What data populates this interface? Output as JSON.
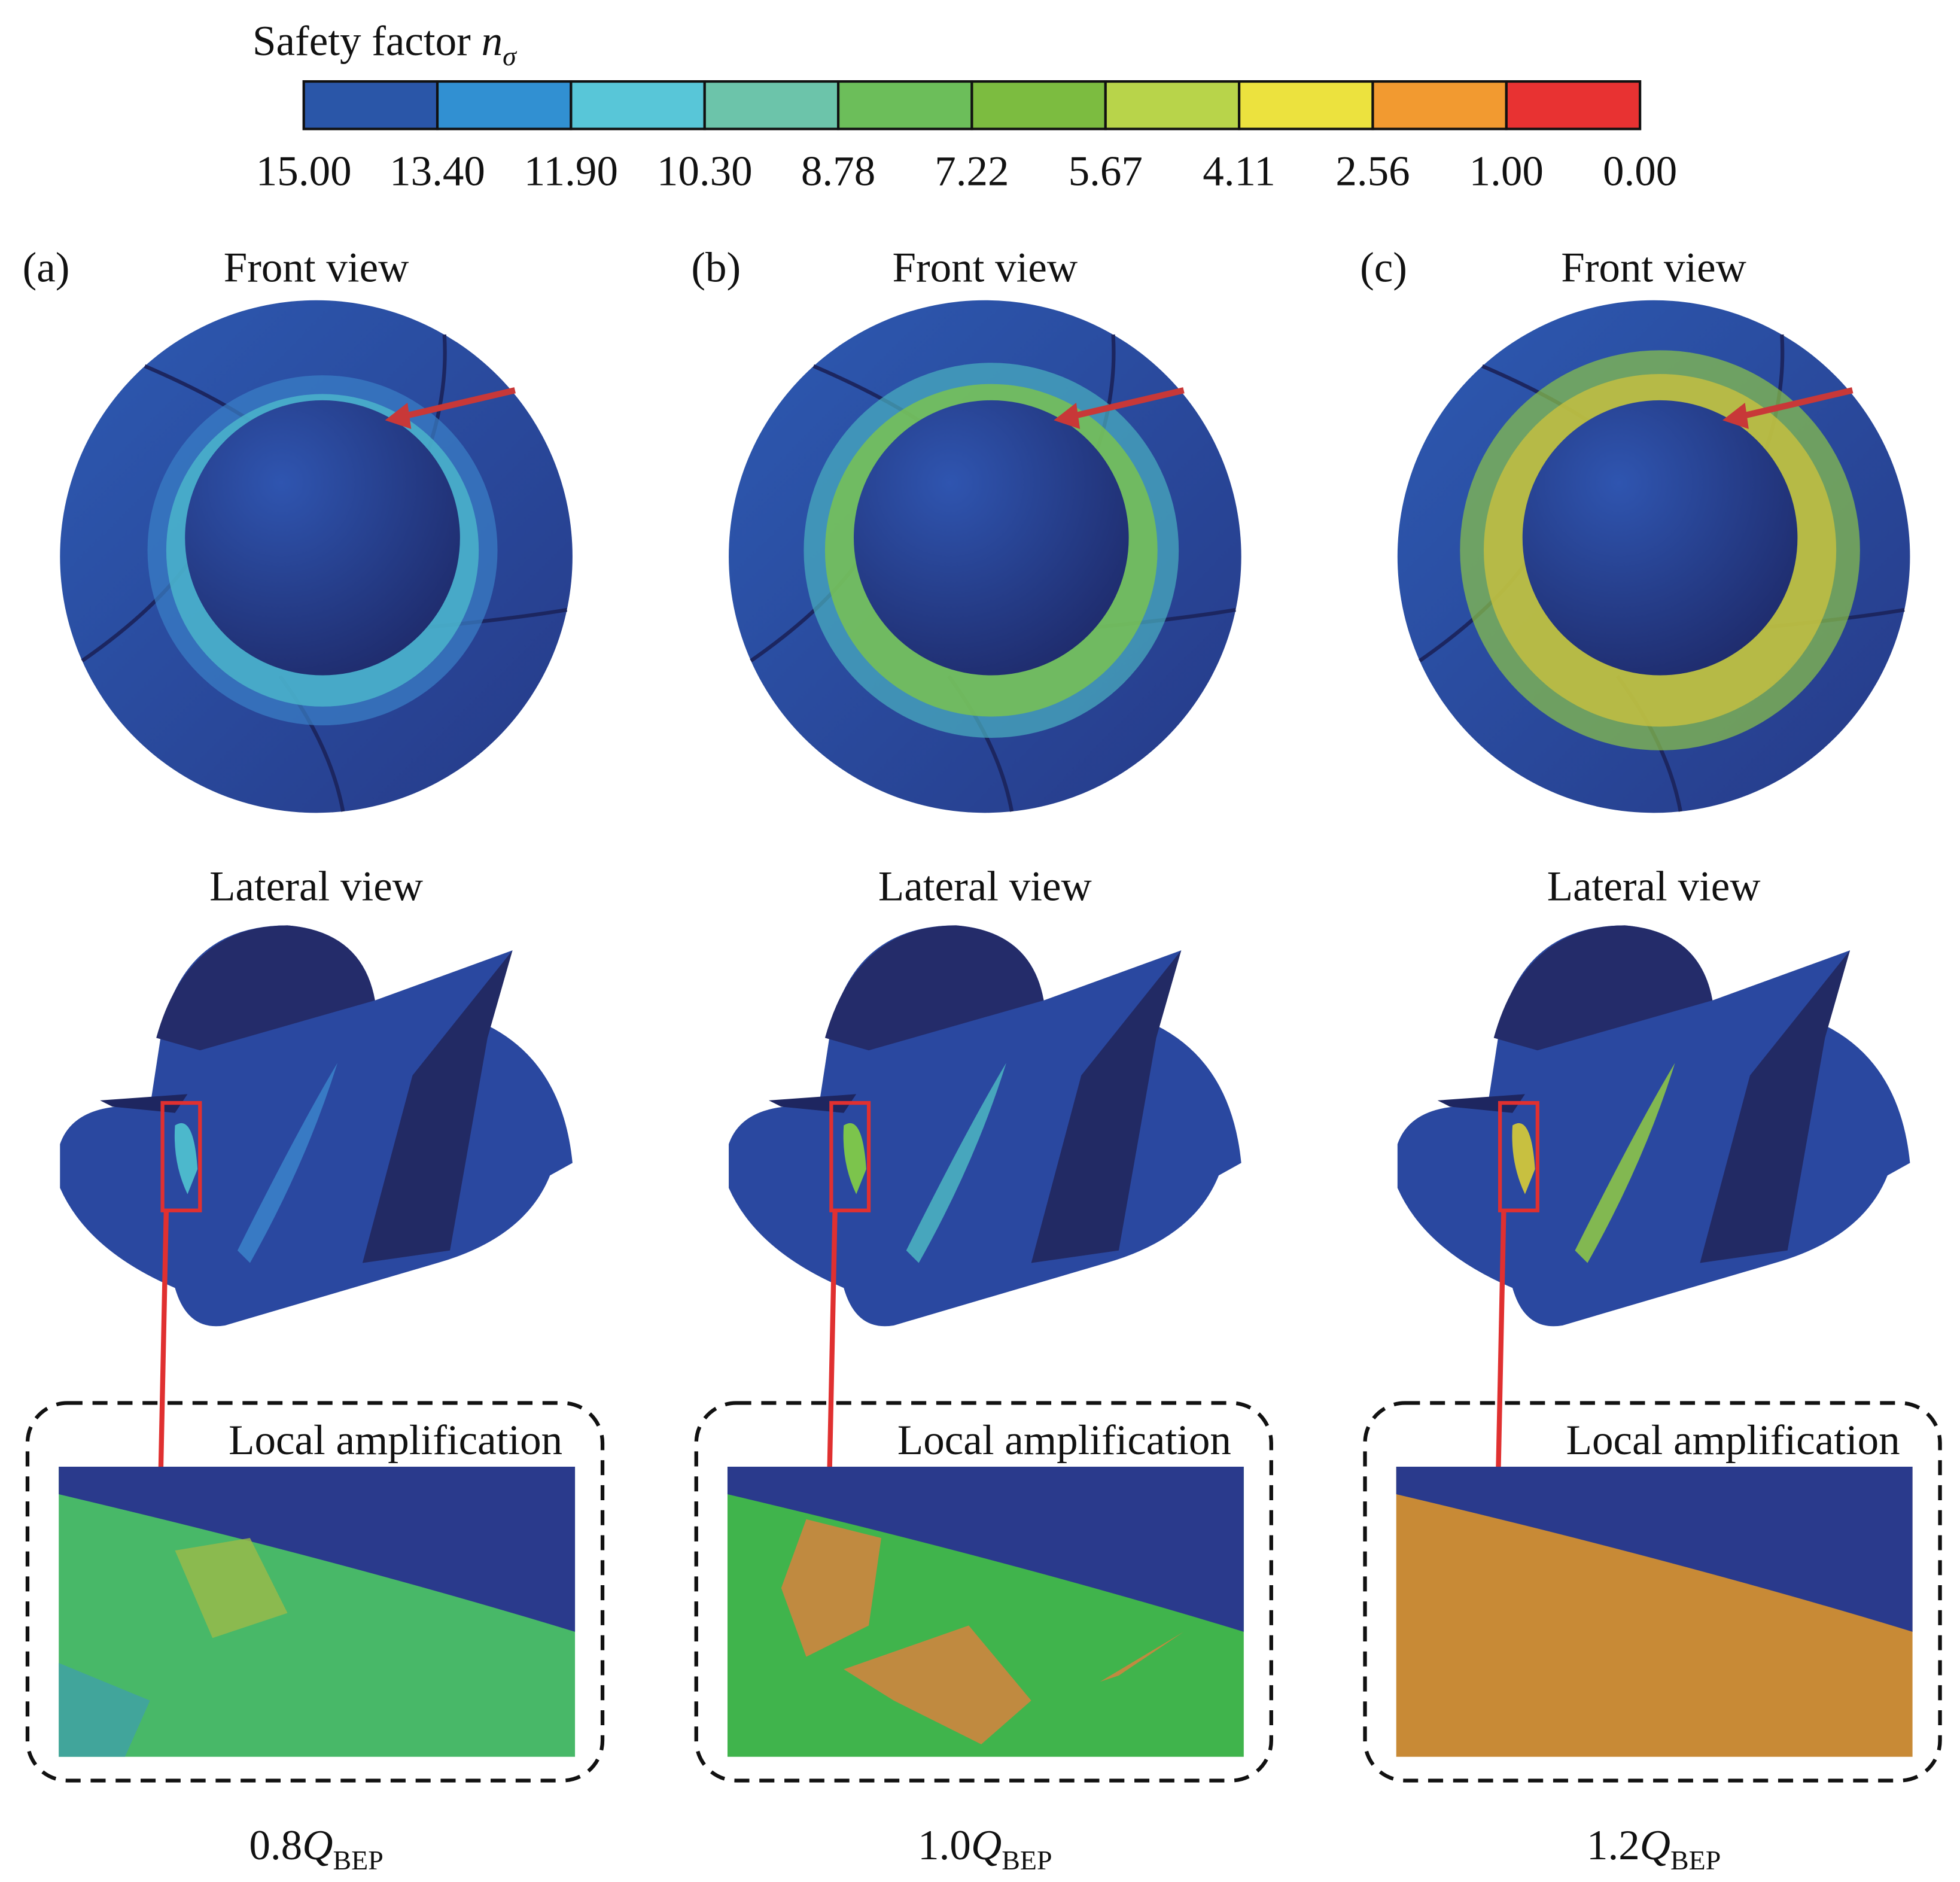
{
  "colorbar": {
    "title": "Safety factor",
    "symbol": "n",
    "subscript": "σ",
    "labels": [
      "15.00",
      "13.40",
      "11.90",
      "10.30",
      "8.78",
      "7.22",
      "5.67",
      "4.11",
      "2.56",
      "1.00",
      "0.00"
    ],
    "colors": [
      "#2a56a8",
      "#3190d2",
      "#58c6d8",
      "#6cc4aa",
      "#6cbe5a",
      "#7cbc40",
      "#b8d44a",
      "#ece23e",
      "#f29a30",
      "#e83232"
    ]
  },
  "panels": [
    {
      "label": "(a)",
      "front": "Front view",
      "lateral": "Lateral view",
      "local": "Local amplification",
      "case": {
        "prefix": "0.8",
        "symbol": "Q",
        "sub": "BEP"
      }
    },
    {
      "label": "(b)",
      "front": "Front view",
      "lateral": "Lateral view",
      "local": "Local amplification",
      "case": {
        "prefix": "1.0",
        "symbol": "Q",
        "sub": "BEP"
      }
    },
    {
      "label": "(c)",
      "front": "Front view",
      "lateral": "Lateral view",
      "local": "Local amplification",
      "case": {
        "prefix": "1.2",
        "symbol": "Q",
        "sub": "BEP"
      }
    }
  ]
}
